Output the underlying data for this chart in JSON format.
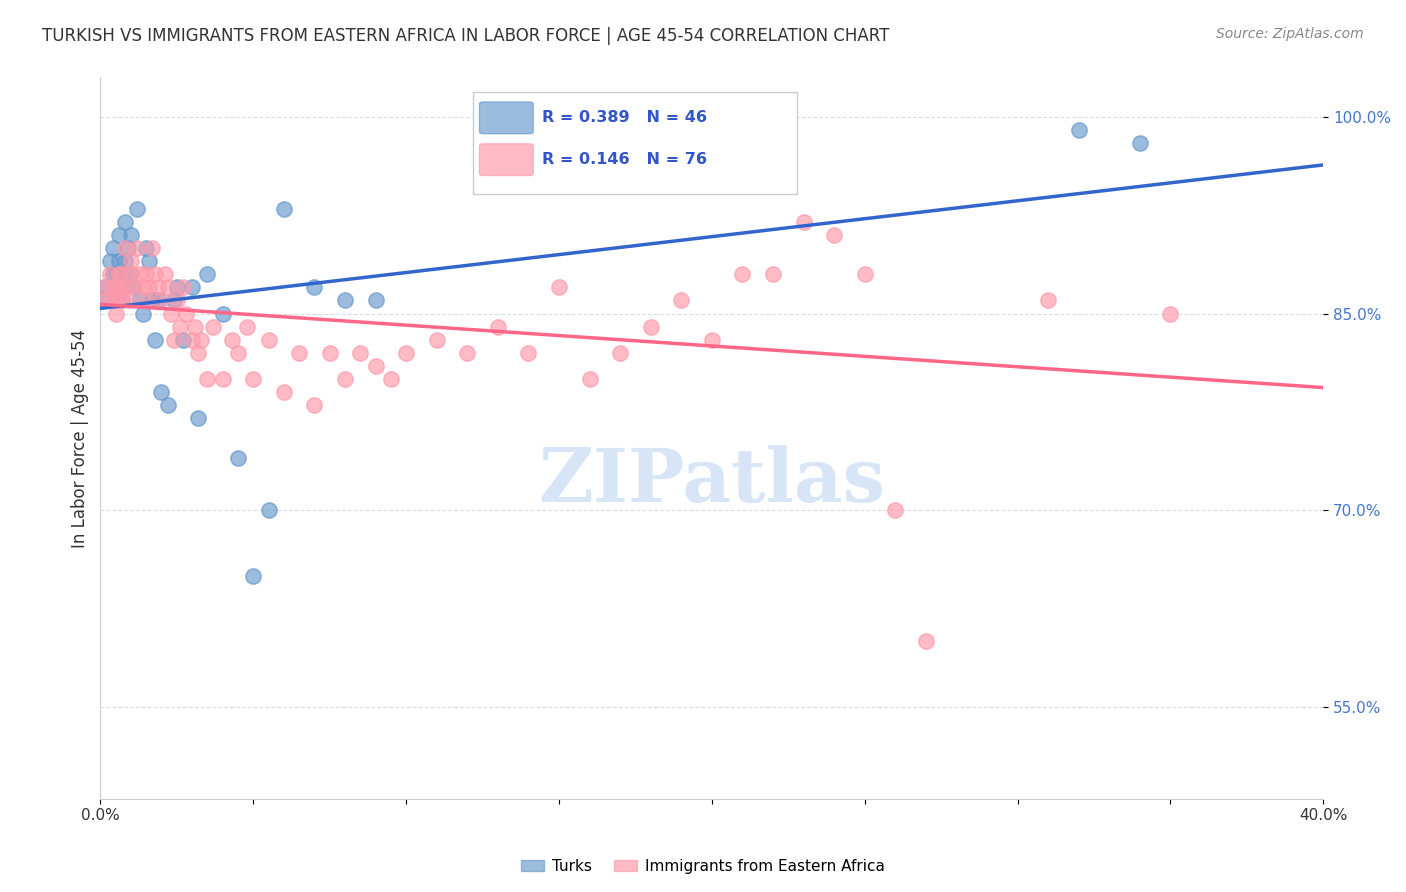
{
  "title": "TURKISH VS IMMIGRANTS FROM EASTERN AFRICA IN LABOR FORCE | AGE 45-54 CORRELATION CHART",
  "source": "Source: ZipAtlas.com",
  "ylabel": "In Labor Force | Age 45-54",
  "xlim": [
    0.0,
    0.4
  ],
  "ylim": [
    0.48,
    1.03
  ],
  "xticks": [
    0.0,
    0.05,
    0.1,
    0.15,
    0.2,
    0.25,
    0.3,
    0.35,
    0.4
  ],
  "xticklabels": [
    "0.0%",
    "",
    "",
    "",
    "",
    "",
    "",
    "",
    "40.0%"
  ],
  "yticks": [
    0.55,
    0.7,
    0.85,
    1.0
  ],
  "yticklabels": [
    "55.0%",
    "70.0%",
    "85.0%",
    "100.0%"
  ],
  "blue_color": "#6699CC",
  "pink_color": "#FF99AA",
  "blue_line_color": "#3366CC",
  "pink_line_color": "#FF6688",
  "R_blue": 0.389,
  "N_blue": 46,
  "R_pink": 0.146,
  "N_pink": 76,
  "turks_x": [
    0.001,
    0.002,
    0.003,
    0.004,
    0.004,
    0.005,
    0.005,
    0.005,
    0.006,
    0.006,
    0.006,
    0.007,
    0.007,
    0.007,
    0.008,
    0.008,
    0.009,
    0.01,
    0.01,
    0.011,
    0.012,
    0.013,
    0.014,
    0.015,
    0.016,
    0.017,
    0.018,
    0.019,
    0.02,
    0.022,
    0.024,
    0.025,
    0.027,
    0.03,
    0.032,
    0.035,
    0.04,
    0.045,
    0.05,
    0.055,
    0.06,
    0.07,
    0.08,
    0.09,
    0.32,
    0.34
  ],
  "turks_y": [
    0.86,
    0.87,
    0.89,
    0.9,
    0.88,
    0.87,
    0.88,
    0.86,
    0.91,
    0.89,
    0.87,
    0.88,
    0.86,
    0.87,
    0.92,
    0.89,
    0.9,
    0.88,
    0.91,
    0.87,
    0.93,
    0.86,
    0.85,
    0.9,
    0.89,
    0.86,
    0.83,
    0.86,
    0.79,
    0.78,
    0.86,
    0.87,
    0.83,
    0.87,
    0.77,
    0.88,
    0.85,
    0.74,
    0.65,
    0.7,
    0.93,
    0.87,
    0.86,
    0.86,
    0.99,
    0.98
  ],
  "africa_x": [
    0.001,
    0.002,
    0.003,
    0.004,
    0.004,
    0.005,
    0.005,
    0.005,
    0.006,
    0.006,
    0.007,
    0.007,
    0.008,
    0.008,
    0.009,
    0.01,
    0.01,
    0.011,
    0.012,
    0.013,
    0.014,
    0.015,
    0.015,
    0.016,
    0.017,
    0.018,
    0.019,
    0.02,
    0.021,
    0.022,
    0.023,
    0.024,
    0.025,
    0.026,
    0.027,
    0.028,
    0.03,
    0.031,
    0.032,
    0.033,
    0.035,
    0.037,
    0.04,
    0.043,
    0.045,
    0.048,
    0.05,
    0.055,
    0.06,
    0.065,
    0.07,
    0.075,
    0.08,
    0.085,
    0.09,
    0.095,
    0.1,
    0.11,
    0.12,
    0.13,
    0.14,
    0.15,
    0.16,
    0.17,
    0.18,
    0.19,
    0.2,
    0.21,
    0.22,
    0.23,
    0.24,
    0.25,
    0.26,
    0.27,
    0.31,
    0.35
  ],
  "africa_y": [
    0.87,
    0.86,
    0.88,
    0.87,
    0.86,
    0.87,
    0.85,
    0.86,
    0.88,
    0.87,
    0.88,
    0.86,
    0.9,
    0.87,
    0.86,
    0.88,
    0.89,
    0.87,
    0.9,
    0.88,
    0.87,
    0.86,
    0.88,
    0.87,
    0.9,
    0.88,
    0.87,
    0.86,
    0.88,
    0.87,
    0.85,
    0.83,
    0.86,
    0.84,
    0.87,
    0.85,
    0.83,
    0.84,
    0.82,
    0.83,
    0.8,
    0.84,
    0.8,
    0.83,
    0.82,
    0.84,
    0.8,
    0.83,
    0.79,
    0.82,
    0.78,
    0.82,
    0.8,
    0.82,
    0.81,
    0.8,
    0.82,
    0.83,
    0.82,
    0.84,
    0.82,
    0.87,
    0.8,
    0.82,
    0.84,
    0.86,
    0.83,
    0.88,
    0.88,
    0.92,
    0.91,
    0.88,
    0.7,
    0.6,
    0.86,
    0.85
  ],
  "grid_color": "#DDDDDD",
  "bg_color": "#FFFFFF"
}
